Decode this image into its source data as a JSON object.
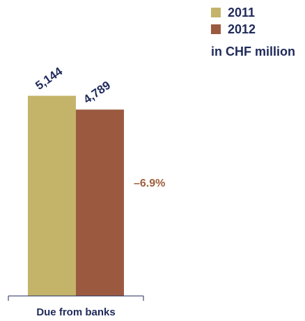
{
  "legend": {
    "items": [
      {
        "label": "2011",
        "color": "#c4b46a"
      },
      {
        "label": "2012",
        "color": "#9b5a40"
      }
    ],
    "unit": "in CHF million"
  },
  "chart_data": {
    "type": "bar",
    "categories": [
      "Due from banks"
    ],
    "series": [
      {
        "name": "2011",
        "values": [
          5144
        ],
        "value_labels": [
          "5,144"
        ],
        "color": "#c4b46a"
      },
      {
        "name": "2012",
        "values": [
          4789
        ],
        "value_labels": [
          "4,789"
        ],
        "color": "#9b5a40"
      }
    ],
    "change_label": "–6.9%",
    "change_color": "#a0603f",
    "ylim": [
      0,
      6800
    ],
    "grid": false,
    "legend_position": "top-right"
  }
}
